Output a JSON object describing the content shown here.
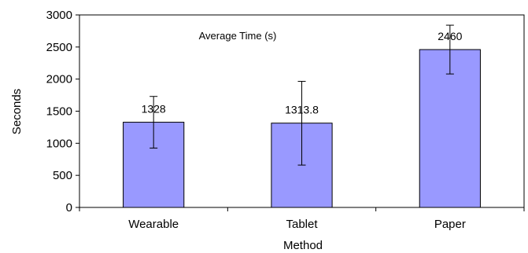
{
  "chart_data": {
    "type": "bar",
    "title": "Average Time (s)",
    "xlabel": "Method",
    "ylabel": "Seconds",
    "categories": [
      "Wearable",
      "Tablet",
      "Paper"
    ],
    "values": [
      1328,
      1313.8,
      2460
    ],
    "data_labels": [
      "1328",
      "1313.8",
      "2460"
    ],
    "error_low": [
      925,
      660,
      2080
    ],
    "error_high": [
      1730,
      1965,
      2840
    ],
    "ylim": [
      0,
      3000
    ],
    "yticks": [
      0,
      500,
      1000,
      1500,
      2000,
      2500,
      3000
    ],
    "grid": false,
    "legend": "none",
    "colors": {
      "bar_fill": "#9999ff",
      "bar_stroke": "#000000",
      "axis": "#000000"
    }
  }
}
